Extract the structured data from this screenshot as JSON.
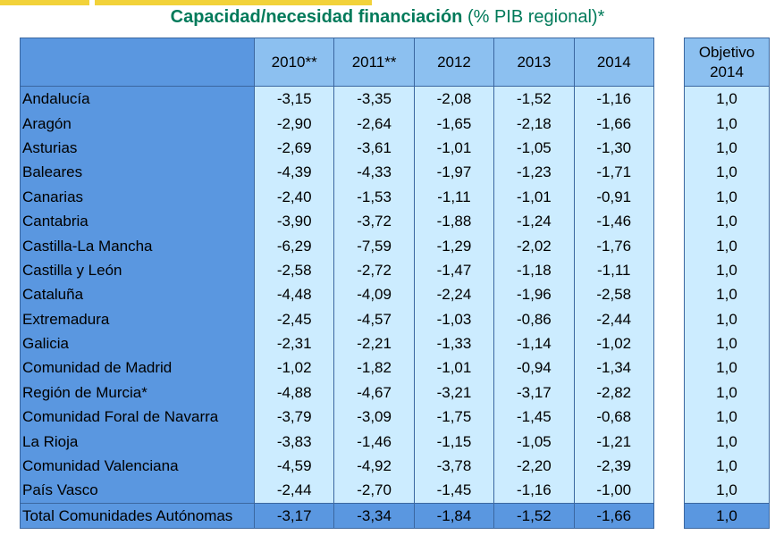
{
  "title": {
    "bold": "Capacidad/necesidad financiación",
    "rest": " (% PIB regional)*"
  },
  "colors": {
    "title": "#007a5a",
    "accent": "#f2d23a",
    "header": "#8cc0f0",
    "region": "#5a97e0",
    "cell": "#ccecff",
    "border": "#3b67a0"
  },
  "table": {
    "headers": [
      "",
      "2010**",
      "2011**",
      "2012",
      "2013",
      "2014"
    ],
    "rows": [
      {
        "region": "Andalucía",
        "values": [
          "-3,15",
          "-3,35",
          "-2,08",
          "-1,52",
          "-1,16"
        ],
        "target": "1,0"
      },
      {
        "region": "Aragón",
        "values": [
          "-2,90",
          "-2,64",
          "-1,65",
          "-2,18",
          "-1,66"
        ],
        "target": "1,0"
      },
      {
        "region": "Asturias",
        "values": [
          "-2,69",
          "-3,61",
          "-1,01",
          "-1,05",
          "-1,30"
        ],
        "target": "1,0"
      },
      {
        "region": "Baleares",
        "values": [
          "-4,39",
          "-4,33",
          "-1,97",
          "-1,23",
          "-1,71"
        ],
        "target": "1,0"
      },
      {
        "region": "Canarias",
        "values": [
          "-2,40",
          "-1,53",
          "-1,11",
          "-1,01",
          "-0,91"
        ],
        "target": "1,0"
      },
      {
        "region": "Cantabria",
        "values": [
          "-3,90",
          "-3,72",
          "-1,88",
          "-1,24",
          "-1,46"
        ],
        "target": "1,0"
      },
      {
        "region": "Castilla-La Mancha",
        "values": [
          "-6,29",
          "-7,59",
          "-1,29",
          "-2,02",
          "-1,76"
        ],
        "target": "1,0"
      },
      {
        "region": "Castilla y León",
        "values": [
          "-2,58",
          "-2,72",
          "-1,47",
          "-1,18",
          "-1,11"
        ],
        "target": "1,0"
      },
      {
        "region": "Cataluña",
        "values": [
          "-4,48",
          "-4,09",
          "-2,24",
          "-1,96",
          "-2,58"
        ],
        "target": "1,0"
      },
      {
        "region": "Extremadura",
        "values": [
          "-2,45",
          "-4,57",
          "-1,03",
          "-0,86",
          "-2,44"
        ],
        "target": "1,0"
      },
      {
        "region": "Galicia",
        "values": [
          "-2,31",
          "-2,21",
          "-1,33",
          "-1,14",
          "-1,02"
        ],
        "target": "1,0"
      },
      {
        "region": "Comunidad de Madrid",
        "values": [
          "-1,02",
          "-1,82",
          "-1,01",
          "-0,94",
          "-1,34"
        ],
        "target": "1,0"
      },
      {
        "region": "Región de Murcia*",
        "values": [
          "-4,88",
          "-4,67",
          "-3,21",
          "-3,17",
          "-2,82"
        ],
        "target": "1,0"
      },
      {
        "region": "Comunidad Foral de Navarra",
        "values": [
          "-3,79",
          "-3,09",
          "-1,75",
          "-1,45",
          "-0,68"
        ],
        "target": "1,0"
      },
      {
        "region": "La Rioja",
        "values": [
          "-3,83",
          "-1,46",
          "-1,15",
          "-1,05",
          "-1,21"
        ],
        "target": "1,0"
      },
      {
        "region": "Comunidad Valenciana",
        "values": [
          "-4,59",
          "-4,92",
          "-3,78",
          "-2,20",
          "-2,39"
        ],
        "target": "1,0"
      },
      {
        "region": "País Vasco",
        "values": [
          "-2,44",
          "-2,70",
          "-1,45",
          "-1,16",
          "-1,00"
        ],
        "target": "1,0"
      }
    ],
    "total": {
      "region": "Total Comunidades Autónomas",
      "values": [
        "-3,17",
        "-3,34",
        "-1,84",
        "-1,52",
        "-1,66"
      ],
      "target": "1,0"
    }
  },
  "target_header": [
    "Objetivo",
    "2014"
  ]
}
